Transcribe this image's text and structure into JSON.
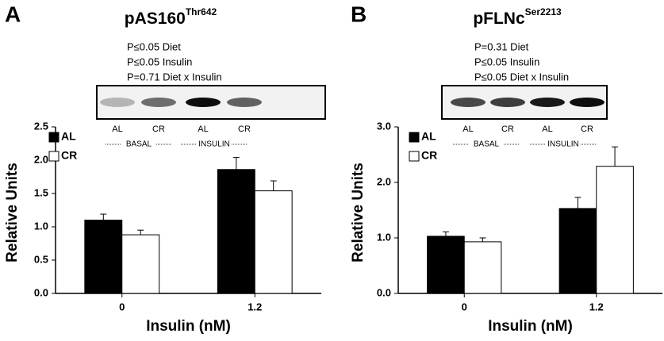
{
  "chart_data": [
    {
      "type": "bar",
      "panel": "A",
      "title": "pAS160",
      "title_sup": "Thr642",
      "annotations": [
        "P≤0.05 Diet",
        "P≤0.05 Insulin",
        "P=0.71 Diet x Insulin"
      ],
      "blot": {
        "lanes": [
          "AL",
          "CR",
          "AL",
          "CR"
        ],
        "groups": [
          "BASAL",
          "INSULIN"
        ]
      },
      "y_label": "Relative Units",
      "x_label": "Insulin (nM)",
      "categories": [
        "0",
        "1.2"
      ],
      "series": [
        {
          "name": "AL",
          "color": "#000000",
          "values": [
            1.1,
            1.86
          ],
          "errors": [
            0.09,
            0.18
          ]
        },
        {
          "name": "CR",
          "color": "#ffffff",
          "values": [
            0.88,
            1.54
          ],
          "errors": [
            0.07,
            0.15
          ]
        }
      ],
      "ylim": [
        0,
        2.5
      ],
      "yticks": [
        {
          "value": 0,
          "label": "0.0"
        },
        {
          "value": 0.5,
          "label": "0.5"
        },
        {
          "value": 1,
          "label": "1.0"
        },
        {
          "value": 1.5,
          "label": "1.5"
        },
        {
          "value": 2,
          "label": "2.0"
        },
        {
          "value": 2.5,
          "label": "2.5"
        }
      ]
    },
    {
      "type": "bar",
      "panel": "B",
      "title": "pFLNc",
      "title_sup": "Ser2213",
      "annotations": [
        "P=0.31 Diet",
        "P≤0.05 Insulin",
        "P≤0.05 Diet x Insulin"
      ],
      "blot": {
        "lanes": [
          "AL",
          "CR",
          "AL",
          "CR"
        ],
        "groups": [
          "BASAL",
          "INSULIN"
        ]
      },
      "y_label": "Relative Units",
      "x_label": "Insulin (nM)",
      "categories": [
        "0",
        "1.2"
      ],
      "series": [
        {
          "name": "AL",
          "color": "#000000",
          "values": [
            1.03,
            1.53
          ],
          "errors": [
            0.08,
            0.2
          ]
        },
        {
          "name": "CR",
          "color": "#ffffff",
          "values": [
            0.93,
            2.29
          ],
          "errors": [
            0.07,
            0.35
          ]
        }
      ],
      "ylim": [
        0,
        3
      ],
      "yticks": [
        {
          "value": 0,
          "label": "0.0"
        },
        {
          "value": 1,
          "label": "1.0"
        },
        {
          "value": 2,
          "label": "2.0"
        },
        {
          "value": 3,
          "label": "3.0"
        }
      ]
    }
  ]
}
